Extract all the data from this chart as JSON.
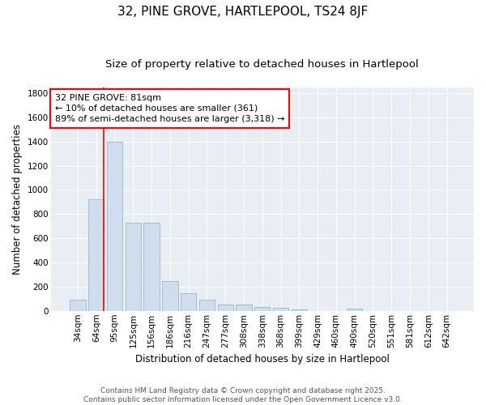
{
  "title": "32, PINE GROVE, HARTLEPOOL, TS24 8JF",
  "subtitle": "Size of property relative to detached houses in Hartlepool",
  "xlabel": "Distribution of detached houses by size in Hartlepool",
  "ylabel": "Number of detached properties",
  "categories": [
    "34sqm",
    "64sqm",
    "95sqm",
    "125sqm",
    "156sqm",
    "186sqm",
    "216sqm",
    "247sqm",
    "277sqm",
    "308sqm",
    "338sqm",
    "368sqm",
    "399sqm",
    "429sqm",
    "460sqm",
    "490sqm",
    "520sqm",
    "551sqm",
    "581sqm",
    "612sqm",
    "642sqm"
  ],
  "values": [
    90,
    920,
    1400,
    730,
    730,
    245,
    145,
    90,
    50,
    50,
    30,
    25,
    15,
    0,
    0,
    20,
    0,
    0,
    0,
    0,
    0
  ],
  "bar_color": "#cfdded",
  "bar_edge_color": "#a0bcd0",
  "vline_color": "red",
  "vline_x_index": 1,
  "ylim": [
    0,
    1850
  ],
  "yticks": [
    0,
    200,
    400,
    600,
    800,
    1000,
    1200,
    1400,
    1600,
    1800
  ],
  "annotation_line1": "32 PINE GROVE: 81sqm",
  "annotation_line2": "← 10% of detached houses are smaller (361)",
  "annotation_line3": "89% of semi-detached houses are larger (3,318) →",
  "annotation_box_facecolor": "white",
  "annotation_box_edgecolor": "red",
  "bg_color": "#ffffff",
  "plot_bg_color": "#e8eef4",
  "grid_color": "#ffffff",
  "footer_text": "Contains HM Land Registry data © Crown copyright and database right 2025.\nContains public sector information licensed under the Open Government Licence v3.0.",
  "title_fontsize": 11,
  "subtitle_fontsize": 9.5,
  "axis_fontsize": 8.5,
  "tick_fontsize": 7.5,
  "annotation_fontsize": 8,
  "footer_fontsize": 6.5
}
